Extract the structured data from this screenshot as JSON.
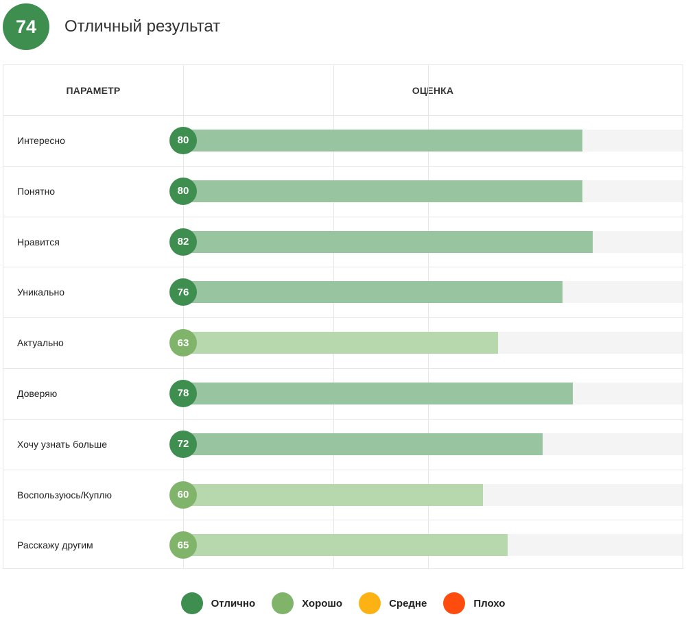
{
  "summary": {
    "score": "74",
    "title": "Отличный результат"
  },
  "table": {
    "param_header": "ПАРАМЕТР",
    "score_header": "ОЦЕНКА"
  },
  "colors": {
    "excellent_dot": "#3e8e50",
    "excellent_bar": "#98c4a0",
    "good_dot": "#7fb46a",
    "good_bar": "#b7d7ad",
    "average": "#fdb214",
    "bad": "#fd4c0d",
    "track": "#f4f4f4"
  },
  "chart_data": {
    "type": "bar",
    "orientation": "horizontal",
    "xlim": [
      0,
      100
    ],
    "categories": [
      "Интересно",
      "Понятно",
      "Нравится",
      "Уникально",
      "Актуально",
      "Доверяю",
      "Хочу узнать больше",
      "Воспользуюсь/Куплю",
      "Расскажу другим"
    ],
    "values": [
      80,
      80,
      82,
      76,
      63,
      78,
      72,
      60,
      65
    ],
    "ratings": [
      "excellent",
      "excellent",
      "excellent",
      "excellent",
      "good",
      "excellent",
      "excellent",
      "good",
      "good"
    ],
    "legend": [
      {
        "key": "excellent",
        "label": "Отлично",
        "color": "#3e8e50"
      },
      {
        "key": "good",
        "label": "Хорошо",
        "color": "#7fb46a"
      },
      {
        "key": "average",
        "label": "Средне",
        "color": "#fdb214"
      },
      {
        "key": "bad",
        "label": "Плохо",
        "color": "#fd4c0d"
      }
    ]
  }
}
